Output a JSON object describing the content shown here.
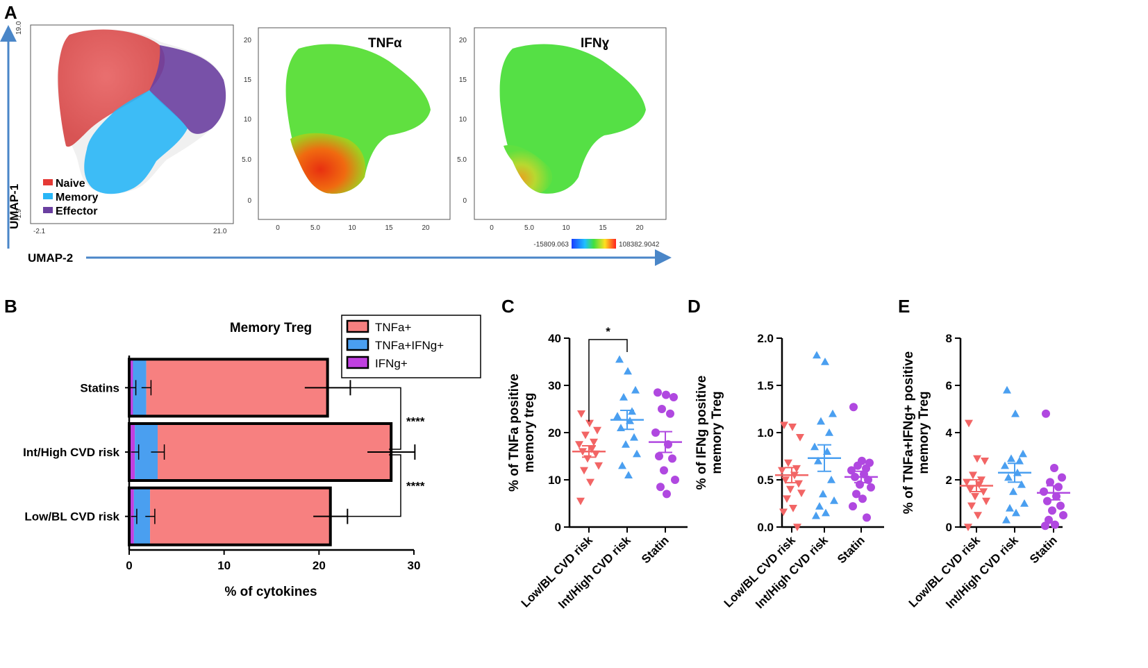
{
  "panel_letters": {
    "a": "A",
    "b": "B",
    "c": "C",
    "d": "D",
    "e": "E"
  },
  "colors": {
    "naive": "#e53935",
    "memory": "#29b6f6",
    "effector": "#6a3fa0",
    "tnfa": "#f78080",
    "tnfa_ifng": "#4a9ff0",
    "ifng": "#c040e0",
    "low": "#f26565",
    "high": "#4a9ff0",
    "statin": "#b048e0",
    "arrow": "#4a86c8"
  },
  "umap": {
    "y_label": "UMAP-1",
    "x_label": "UMAP-2",
    "cluster_plot": {
      "y_top": "19.0",
      "y_bottom": "-1.9",
      "x_left": "-2.1",
      "x_right": "21.0",
      "legend": [
        "Naive",
        "Memory",
        "Effector"
      ]
    },
    "tnfa_plot": {
      "title": "TNFα",
      "y_ticks": [
        "20",
        "15",
        "10",
        "5.0",
        "0"
      ],
      "x_ticks": [
        "0",
        "5.0",
        "10",
        "15",
        "20"
      ]
    },
    "ifng_plot": {
      "title": "IFNɣ",
      "y_ticks": [
        "20",
        "15",
        "10",
        "5.0",
        "0"
      ],
      "x_ticks": [
        "0",
        "5.0",
        "10",
        "15",
        "20"
      ]
    },
    "colorbar": {
      "min": "-15809.063",
      "max": "108382.9042"
    }
  },
  "chart_data": [
    {
      "id": "B",
      "type": "bar",
      "orientation": "horizontal",
      "stacked": true,
      "title": "Memory Treg",
      "xlabel": "% of cytokines",
      "ylabel": "",
      "xlim": [
        0,
        30
      ],
      "x_ticks": [
        "0",
        "10",
        "20",
        "30"
      ],
      "categories": [
        "Statins",
        "Int/High CVD risk",
        "Low/BL CVD risk"
      ],
      "series": [
        {
          "name": "IFNg+",
          "values": [
            0.4,
            0.6,
            0.5
          ],
          "errors": [
            0.3,
            0.4,
            0.3
          ]
        },
        {
          "name": "TNFa+IFNg+",
          "values": [
            1.4,
            2.4,
            1.7
          ],
          "errors": [
            0.5,
            0.7,
            0.5
          ]
        },
        {
          "name": "TNFa+",
          "values": [
            19.1,
            24.6,
            19.0
          ],
          "errors": [
            2.4,
            2.5,
            1.8
          ]
        }
      ],
      "legend": [
        "TNFa+",
        "TNFa+IFNg+",
        "IFNg+"
      ],
      "significance": [
        {
          "label": "****",
          "between": [
            "Statins",
            "Int/High CVD risk"
          ]
        },
        {
          "label": "****",
          "between": [
            "Int/High CVD risk",
            "Low/BL CVD risk"
          ]
        }
      ]
    },
    {
      "id": "C",
      "type": "scatter",
      "ylabel": "% of TNFa positive memory treg",
      "ylim": [
        0,
        40
      ],
      "y_ticks": [
        "0",
        "10",
        "20",
        "30",
        "40"
      ],
      "categories": [
        "Low/BL CVD risk",
        "Int/High CVD risk",
        "Statin"
      ],
      "groups": [
        {
          "name": "Low/BL CVD risk",
          "marker": "triangle-down",
          "mean": 16.0,
          "sem": 1.2,
          "values": [
            24.0,
            22.0,
            20.5,
            19.5,
            18.0,
            17.5,
            16.5,
            16.0,
            15.5,
            14.5,
            13.0,
            12.0,
            9.5,
            5.5
          ]
        },
        {
          "name": "Int/High CVD risk",
          "marker": "triangle-up",
          "mean": 22.7,
          "sem": 2.0,
          "values": [
            35.5,
            33.0,
            29.0,
            27.5,
            24.5,
            23.5,
            22.5,
            21.0,
            19.0,
            17.5,
            15.5,
            13.0,
            11.0
          ]
        },
        {
          "name": "Statin",
          "marker": "circle",
          "mean": 18.0,
          "sem": 2.2,
          "values": [
            28.5,
            28.0,
            27.5,
            25.0,
            24.0,
            20.0,
            17.5,
            15.0,
            14.5,
            12.0,
            10.0,
            8.5,
            7.0
          ]
        }
      ],
      "significance": [
        {
          "label": "*",
          "between": [
            "Low/BL CVD risk",
            "Int/High CVD risk"
          ]
        }
      ]
    },
    {
      "id": "D",
      "type": "scatter",
      "ylabel": "% of IFNg positive memory Treg",
      "ylim": [
        0,
        2.0
      ],
      "y_ticks": [
        "0.0",
        "0.5",
        "1.0",
        "1.5",
        "2.0"
      ],
      "categories": [
        "Low/BL CVD risk",
        "Int/High CVD risk",
        "Statin"
      ],
      "groups": [
        {
          "name": "Low/BL CVD risk",
          "marker": "triangle-down",
          "mean": 0.55,
          "sem": 0.08,
          "values": [
            1.08,
            1.06,
            0.95,
            0.68,
            0.62,
            0.6,
            0.55,
            0.5,
            0.46,
            0.4,
            0.36,
            0.3,
            0.2,
            0.16,
            0.0
          ]
        },
        {
          "name": "Int/High CVD risk",
          "marker": "triangle-up",
          "mean": 0.73,
          "sem": 0.14,
          "values": [
            1.82,
            1.75,
            1.2,
            1.12,
            1.0,
            0.85,
            0.8,
            0.7,
            0.5,
            0.35,
            0.28,
            0.22,
            0.15,
            0.12
          ]
        },
        {
          "name": "Statin",
          "marker": "circle",
          "mean": 0.53,
          "sem": 0.06,
          "values": [
            1.27,
            0.7,
            0.68,
            0.65,
            0.62,
            0.6,
            0.56,
            0.53,
            0.5,
            0.45,
            0.42,
            0.35,
            0.3,
            0.22,
            0.1
          ]
        }
      ]
    },
    {
      "id": "E",
      "type": "scatter",
      "ylabel": "% of TNFa+IFNg+ positive memory Treg",
      "ylim": [
        0,
        8
      ],
      "y_ticks": [
        "0",
        "2",
        "4",
        "6",
        "8"
      ],
      "categories": [
        "Low/BL CVD risk",
        "Int/High CVD risk",
        "Statin"
      ],
      "groups": [
        {
          "name": "Low/BL CVD risk",
          "marker": "triangle-down",
          "mean": 1.75,
          "sem": 0.25,
          "values": [
            4.4,
            2.9,
            2.8,
            2.2,
            2.0,
            1.9,
            1.8,
            1.6,
            1.5,
            1.3,
            1.1,
            0.9,
            0.5,
            0.0
          ]
        },
        {
          "name": "Int/High CVD risk",
          "marker": "triangle-up",
          "mean": 2.3,
          "sem": 0.4,
          "values": [
            5.8,
            4.8,
            3.1,
            2.9,
            2.8,
            2.6,
            2.3,
            2.1,
            1.8,
            1.5,
            1.0,
            0.8,
            0.6,
            0.3
          ]
        },
        {
          "name": "Statin",
          "marker": "circle",
          "mean": 1.45,
          "sem": 0.3,
          "values": [
            4.8,
            2.5,
            2.1,
            1.9,
            1.7,
            1.5,
            1.3,
            1.1,
            0.9,
            0.7,
            0.5,
            0.3,
            0.1,
            0.05
          ]
        }
      ]
    }
  ]
}
